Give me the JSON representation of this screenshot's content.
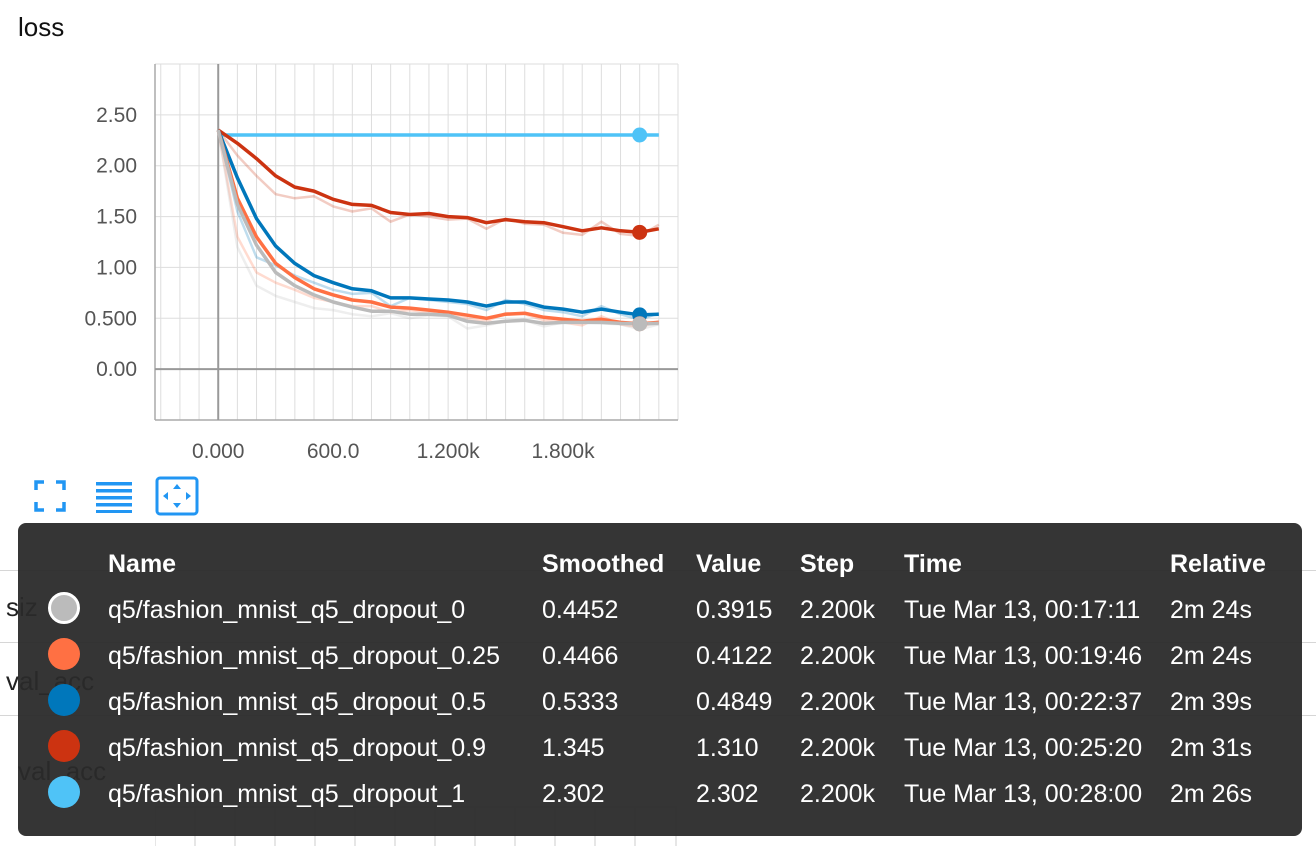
{
  "card": {
    "title": "loss"
  },
  "chart_data": {
    "type": "line",
    "title": "loss",
    "xlabel": "",
    "ylabel": "",
    "xlim": [
      -330,
      2400
    ],
    "ylim": [
      -0.5,
      3.0
    ],
    "x_ticks": [
      0,
      600,
      1200,
      1800
    ],
    "x_tick_labels": [
      "0.000",
      "600.0",
      "1.200k",
      "1.800k"
    ],
    "y_ticks": [
      0,
      0.5,
      1.0,
      1.5,
      2.0,
      2.5
    ],
    "y_tick_labels": [
      "0.00",
      "0.500",
      "1.00",
      "1.50",
      "2.00",
      "2.50"
    ],
    "grid": true,
    "x": [
      0,
      100,
      200,
      300,
      400,
      500,
      600,
      700,
      800,
      900,
      1000,
      1100,
      1200,
      1300,
      1400,
      1500,
      1600,
      1700,
      1800,
      1900,
      2000,
      2100,
      2200,
      2300
    ],
    "series": [
      {
        "name": "q5/fashion_mnist_q5_dropout_1",
        "color": "#4fc3f7",
        "values": [
          2.302,
          2.302,
          2.302,
          2.302,
          2.302,
          2.302,
          2.302,
          2.302,
          2.302,
          2.302,
          2.302,
          2.302,
          2.302,
          2.302,
          2.302,
          2.302,
          2.302,
          2.302,
          2.302,
          2.302,
          2.302,
          2.302,
          2.302,
          2.302
        ],
        "raw": [
          2.302,
          2.302,
          2.302,
          2.302,
          2.302,
          2.302,
          2.302,
          2.302,
          2.302,
          2.302,
          2.302,
          2.302,
          2.302,
          2.302,
          2.302,
          2.302,
          2.302,
          2.302,
          2.302,
          2.302,
          2.302,
          2.302,
          2.302,
          2.302
        ]
      },
      {
        "name": "q5/fashion_mnist_q5_dropout_0.9",
        "color": "#cc3311",
        "values": [
          2.35,
          2.22,
          2.07,
          1.9,
          1.79,
          1.75,
          1.67,
          1.62,
          1.61,
          1.54,
          1.52,
          1.53,
          1.5,
          1.49,
          1.44,
          1.47,
          1.45,
          1.44,
          1.4,
          1.36,
          1.39,
          1.36,
          1.345,
          1.38
        ],
        "raw": [
          2.35,
          2.1,
          1.9,
          1.72,
          1.68,
          1.7,
          1.6,
          1.55,
          1.58,
          1.45,
          1.52,
          1.5,
          1.47,
          1.48,
          1.38,
          1.48,
          1.43,
          1.42,
          1.34,
          1.32,
          1.45,
          1.33,
          1.31,
          1.42
        ]
      },
      {
        "name": "q5/fashion_mnist_q5_dropout_0.5",
        "color": "#0077bb",
        "values": [
          2.35,
          1.88,
          1.48,
          1.21,
          1.04,
          0.92,
          0.85,
          0.79,
          0.77,
          0.7,
          0.7,
          0.69,
          0.68,
          0.66,
          0.62,
          0.66,
          0.66,
          0.61,
          0.59,
          0.56,
          0.59,
          0.56,
          0.5333,
          0.54
        ],
        "raw": [
          2.35,
          1.55,
          1.1,
          1.02,
          0.92,
          0.85,
          0.78,
          0.74,
          0.75,
          0.62,
          0.7,
          0.68,
          0.66,
          0.64,
          0.58,
          0.68,
          0.64,
          0.58,
          0.56,
          0.52,
          0.62,
          0.54,
          0.4849,
          0.55
        ]
      },
      {
        "name": "q5/fashion_mnist_q5_dropout_0.25",
        "color": "#ff7043",
        "values": [
          2.35,
          1.68,
          1.3,
          1.04,
          0.9,
          0.79,
          0.73,
          0.68,
          0.66,
          0.61,
          0.6,
          0.58,
          0.56,
          0.53,
          0.5,
          0.54,
          0.55,
          0.51,
          0.49,
          0.47,
          0.49,
          0.46,
          0.4466,
          0.46
        ],
        "raw": [
          2.35,
          1.3,
          0.95,
          0.85,
          0.78,
          0.7,
          0.66,
          0.62,
          0.62,
          0.56,
          0.58,
          0.56,
          0.54,
          0.5,
          0.47,
          0.55,
          0.54,
          0.48,
          0.46,
          0.43,
          0.52,
          0.44,
          0.4122,
          0.47
        ]
      },
      {
        "name": "q5/fashion_mnist_q5_dropout_0",
        "color": "#bbbbbb",
        "values": [
          2.35,
          1.62,
          1.22,
          0.95,
          0.82,
          0.73,
          0.66,
          0.61,
          0.57,
          0.57,
          0.54,
          0.54,
          0.53,
          0.47,
          0.45,
          0.47,
          0.48,
          0.45,
          0.46,
          0.46,
          0.46,
          0.45,
          0.4452,
          0.45
        ],
        "raw": [
          2.35,
          1.2,
          0.82,
          0.72,
          0.66,
          0.6,
          0.58,
          0.54,
          0.52,
          0.55,
          0.5,
          0.53,
          0.52,
          0.4,
          0.43,
          0.47,
          0.48,
          0.42,
          0.46,
          0.46,
          0.45,
          0.44,
          0.3915,
          0.44
        ]
      }
    ],
    "markers_at_x": 2200
  },
  "toolbar": {
    "buttons": [
      {
        "name": "fullscreen-icon"
      },
      {
        "name": "toggle-y-log-scale-icon"
      },
      {
        "name": "fit-domain-icon"
      }
    ]
  },
  "background": {
    "labels": [
      "siz",
      "val_acc",
      "val_acc"
    ]
  },
  "tooltip": {
    "headers": {
      "name": "Name",
      "smoothed": "Smoothed",
      "value": "Value",
      "step": "Step",
      "time": "Time",
      "relative": "Relative"
    },
    "rows": [
      {
        "color": "#bbbbbb",
        "name": "q5/fashion_mnist_q5_dropout_0",
        "smoothed": "0.4452",
        "value": "0.3915",
        "step": "2.200k",
        "time": "Tue Mar 13, 00:17:11",
        "relative": "2m 24s"
      },
      {
        "color": "#ff7043",
        "name": "q5/fashion_mnist_q5_dropout_0.25",
        "smoothed": "0.4466",
        "value": "0.4122",
        "step": "2.200k",
        "time": "Tue Mar 13, 00:19:46",
        "relative": "2m 24s"
      },
      {
        "color": "#0077bb",
        "name": "q5/fashion_mnist_q5_dropout_0.5",
        "smoothed": "0.5333",
        "value": "0.4849",
        "step": "2.200k",
        "time": "Tue Mar 13, 00:22:37",
        "relative": "2m 39s"
      },
      {
        "color": "#cc3311",
        "name": "q5/fashion_mnist_q5_dropout_0.9",
        "smoothed": "1.345",
        "value": "1.310",
        "step": "2.200k",
        "time": "Tue Mar 13, 00:25:20",
        "relative": "2m 31s"
      },
      {
        "color": "#4fc3f7",
        "name": "q5/fashion_mnist_q5_dropout_1",
        "smoothed": "2.302",
        "value": "2.302",
        "step": "2.200k",
        "time": "Tue Mar 13, 00:28:00",
        "relative": "2m 26s"
      }
    ]
  }
}
